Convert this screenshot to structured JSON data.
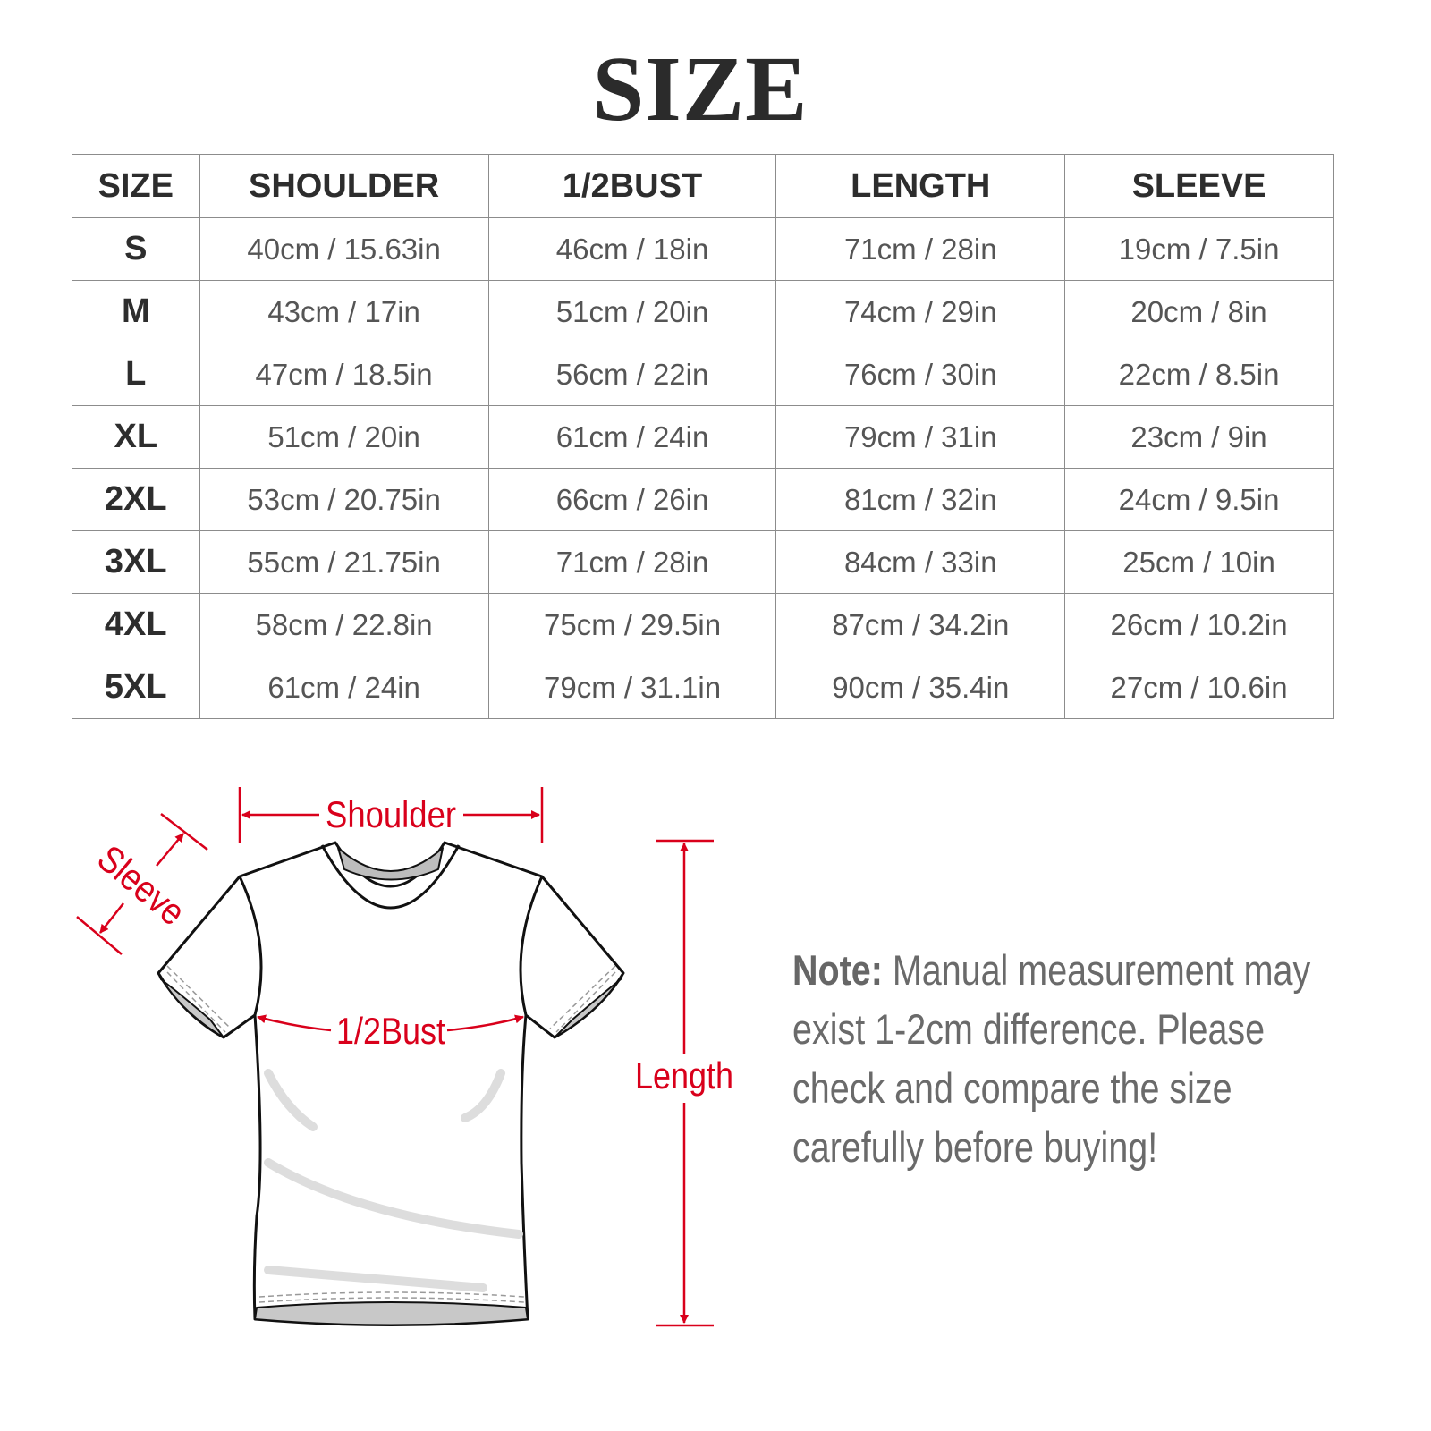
{
  "title": "SIZE",
  "table": {
    "headers": [
      "SIZE",
      "SHOULDER",
      "1/2BUST",
      "LENGTH",
      "SLEEVE"
    ],
    "rows": [
      [
        "S",
        "40cm / 15.63in",
        "46cm / 18in",
        "71cm / 28in",
        "19cm / 7.5in"
      ],
      [
        "M",
        "43cm / 17in",
        "51cm / 20in",
        "74cm / 29in",
        "20cm / 8in"
      ],
      [
        "L",
        "47cm / 18.5in",
        "56cm / 22in",
        "76cm / 30in",
        "22cm / 8.5in"
      ],
      [
        "XL",
        "51cm / 20in",
        "61cm / 24in",
        "79cm / 31in",
        "23cm / 9in"
      ],
      [
        "2XL",
        "53cm / 20.75in",
        "66cm / 26in",
        "81cm / 32in",
        "24cm / 9.5in"
      ],
      [
        "3XL",
        "55cm / 21.75in",
        "71cm / 28in",
        "84cm / 33in",
        "25cm / 10in"
      ],
      [
        "4XL",
        "58cm / 22.8in",
        "75cm / 29.5in",
        "87cm / 34.2in",
        "26cm / 10.2in"
      ],
      [
        "5XL",
        "61cm / 24in",
        "79cm / 31.1in",
        "90cm / 35.4in",
        "27cm / 10.6in"
      ]
    ]
  },
  "diagram": {
    "shoulder": "Shoulder",
    "sleeve": "Sleeve",
    "bust": "1/2Bust",
    "length": "Length",
    "accent_color": "#d9001b",
    "icon": "t-shirt-icon"
  },
  "note": {
    "label": "Note:",
    "lines": [
      " Manual measurement may",
      "exist 1-2cm difference. Please",
      "check and compare the size",
      "carefully before buying!"
    ]
  }
}
